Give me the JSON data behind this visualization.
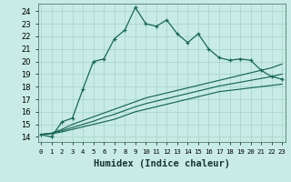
{
  "xlabel": "Humidex (Indice chaleur)",
  "ylabel": "",
  "bg_color": "#c8ebe5",
  "grid_color": "#a8d8cc",
  "line_color": "#1a6655",
  "x_ticks": [
    0,
    1,
    2,
    3,
    4,
    5,
    6,
    7,
    8,
    9,
    10,
    11,
    12,
    13,
    14,
    15,
    16,
    17,
    18,
    19,
    20,
    21,
    22,
    23
  ],
  "y_ticks": [
    14,
    15,
    16,
    17,
    18,
    19,
    20,
    21,
    22,
    23,
    24
  ],
  "xlim": [
    -0.3,
    23.3
  ],
  "ylim": [
    13.6,
    24.6
  ],
  "main_x": [
    0,
    1,
    2,
    3,
    4,
    5,
    6,
    7,
    8,
    9,
    10,
    11,
    12,
    13,
    14,
    15,
    16,
    17,
    18,
    19,
    20,
    21,
    22,
    23
  ],
  "main_y": [
    14.2,
    14.0,
    15.2,
    15.5,
    17.8,
    20.0,
    20.2,
    21.8,
    22.5,
    24.3,
    23.0,
    22.8,
    23.3,
    22.2,
    21.5,
    22.2,
    21.0,
    20.3,
    20.1,
    20.2,
    20.1,
    19.3,
    18.8,
    18.6
  ],
  "line2_x": [
    0,
    1,
    2,
    3,
    4,
    5,
    6,
    7,
    8,
    9,
    10,
    11,
    12,
    13,
    14,
    15,
    16,
    17,
    18,
    19,
    20,
    21,
    22,
    23
  ],
  "line2_y": [
    14.2,
    14.3,
    14.6,
    15.0,
    15.3,
    15.6,
    15.9,
    16.2,
    16.5,
    16.8,
    17.1,
    17.3,
    17.5,
    17.7,
    17.9,
    18.1,
    18.3,
    18.5,
    18.7,
    18.9,
    19.1,
    19.3,
    19.5,
    19.8
  ],
  "line3_x": [
    0,
    1,
    2,
    3,
    4,
    5,
    6,
    7,
    8,
    9,
    10,
    11,
    12,
    13,
    14,
    15,
    16,
    17,
    18,
    19,
    20,
    21,
    22,
    23
  ],
  "line3_y": [
    14.2,
    14.25,
    14.4,
    14.6,
    14.8,
    15.0,
    15.2,
    15.4,
    15.7,
    16.0,
    16.2,
    16.4,
    16.6,
    16.8,
    17.0,
    17.2,
    17.4,
    17.6,
    17.7,
    17.8,
    17.9,
    18.0,
    18.1,
    18.2
  ],
  "line4_x": [
    0,
    1,
    2,
    3,
    4,
    5,
    6,
    7,
    8,
    9,
    10,
    11,
    12,
    13,
    14,
    15,
    16,
    17,
    18,
    19,
    20,
    21,
    22,
    23
  ],
  "line4_y": [
    14.2,
    14.28,
    14.5,
    14.75,
    15.0,
    15.25,
    15.55,
    15.8,
    16.1,
    16.4,
    16.65,
    16.85,
    17.05,
    17.25,
    17.45,
    17.65,
    17.85,
    18.05,
    18.2,
    18.35,
    18.5,
    18.65,
    18.8,
    19.0
  ],
  "xlabel_fontsize": 7.5,
  "xlabel_fontweight": "bold",
  "tick_fontsize": 6.0,
  "xtick_fontsize": 5.2
}
